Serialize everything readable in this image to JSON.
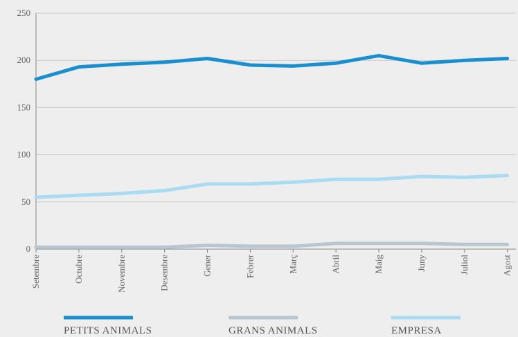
{
  "chart_data": {
    "type": "line",
    "title": "",
    "xlabel": "",
    "ylabel": "",
    "ylim": [
      0,
      250
    ],
    "yticks": [
      0,
      50,
      100,
      150,
      200,
      250
    ],
    "categories": [
      "Setembre",
      "Octubre",
      "Novembre",
      "Desembre",
      "Gener",
      "Febrer",
      "Març",
      "Abril",
      "Maig",
      "Juny",
      "Juliol",
      "Agost"
    ],
    "grid": true,
    "legend_position": "bottom",
    "series": [
      {
        "name": "PETITS ANIMALS",
        "color": "#1a8fcf",
        "values": [
          180,
          193,
          196,
          198,
          202,
          195,
          194,
          197,
          205,
          197,
          200,
          202
        ]
      },
      {
        "name": "GRANS ANIMALS",
        "color": "#b9c6cf",
        "values": [
          2,
          2,
          2,
          2,
          4,
          3,
          3,
          6,
          6,
          6,
          5,
          5
        ]
      },
      {
        "name": "EMPRESA",
        "color": "#a9dcf2",
        "values": [
          55,
          57,
          59,
          62,
          69,
          69,
          71,
          74,
          74,
          77,
          76,
          78
        ]
      }
    ]
  }
}
